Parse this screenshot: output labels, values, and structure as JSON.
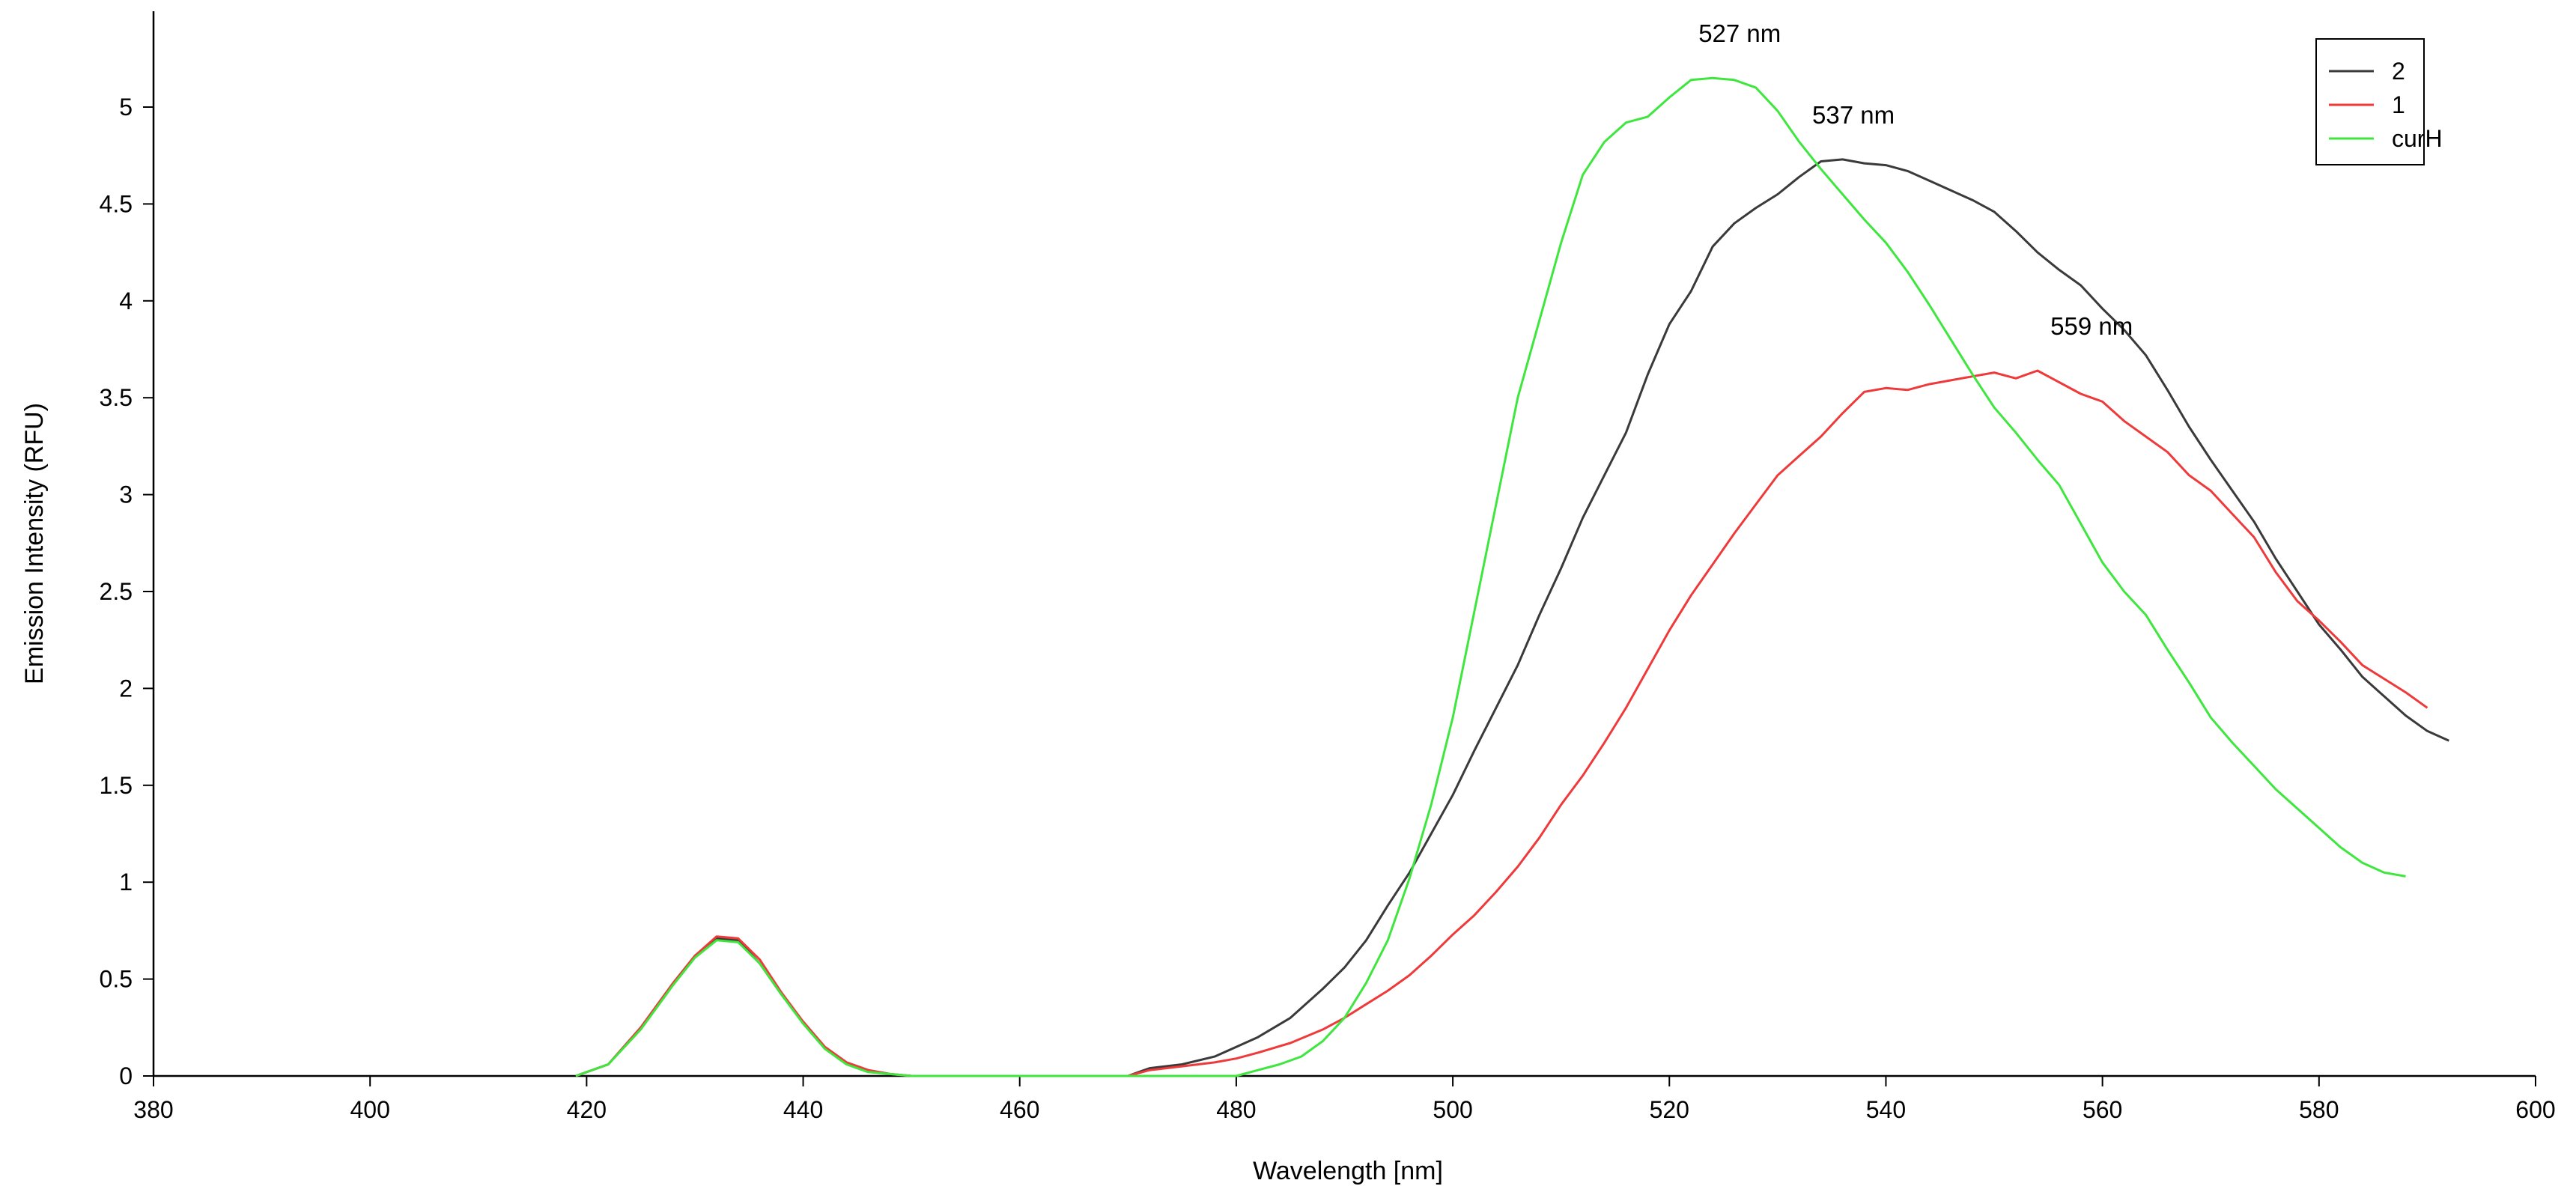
{
  "chart_data": {
    "type": "line",
    "xlabel": "Wavelength [nm]",
    "ylabel": "Emission Intensity (RFU)",
    "xlim": [
      380,
      600
    ],
    "ylim": [
      0,
      5.45
    ],
    "xticks": [
      380,
      400,
      420,
      440,
      460,
      480,
      500,
      520,
      540,
      560,
      580,
      600
    ],
    "xtick_labels": [
      "380",
      "400",
      "420",
      "440",
      "460",
      "480",
      "500",
      "520",
      "540",
      "560",
      "580",
      "600"
    ],
    "yticks": [
      0,
      0.5,
      1,
      1.5,
      2,
      2.5,
      3,
      3.5,
      4,
      4.5,
      5
    ],
    "ytick_labels": [
      "0",
      "0.5",
      "1",
      "1.5",
      "2",
      "2.5",
      "3",
      "3.5",
      "4",
      "4.5",
      "5"
    ],
    "grid": false,
    "legend_position": "top-right",
    "series": [
      {
        "name": "2",
        "color": "#3a3a3a",
        "points": [
          [
            419,
            0
          ],
          [
            422,
            0.06
          ],
          [
            425,
            0.25
          ],
          [
            428,
            0.48
          ],
          [
            430,
            0.62
          ],
          [
            432,
            0.71
          ],
          [
            434,
            0.7
          ],
          [
            436,
            0.58
          ],
          [
            438,
            0.42
          ],
          [
            440,
            0.28
          ],
          [
            442,
            0.15
          ],
          [
            444,
            0.07
          ],
          [
            446,
            0.03
          ],
          [
            448,
            0.01
          ],
          [
            450,
            0
          ],
          [
            470,
            0
          ],
          [
            472,
            0.04
          ],
          [
            475,
            0.06
          ],
          [
            478,
            0.1
          ],
          [
            480,
            0.15
          ],
          [
            482,
            0.2
          ],
          [
            485,
            0.3
          ],
          [
            488,
            0.45
          ],
          [
            490,
            0.56
          ],
          [
            492,
            0.7
          ],
          [
            494,
            0.88
          ],
          [
            496,
            1.05
          ],
          [
            498,
            1.25
          ],
          [
            500,
            1.45
          ],
          [
            502,
            1.68
          ],
          [
            504,
            1.9
          ],
          [
            506,
            2.12
          ],
          [
            508,
            2.38
          ],
          [
            510,
            2.62
          ],
          [
            512,
            2.88
          ],
          [
            514,
            3.1
          ],
          [
            516,
            3.32
          ],
          [
            518,
            3.62
          ],
          [
            520,
            3.88
          ],
          [
            522,
            4.05
          ],
          [
            524,
            4.28
          ],
          [
            526,
            4.4
          ],
          [
            528,
            4.48
          ],
          [
            530,
            4.55
          ],
          [
            532,
            4.64
          ],
          [
            534,
            4.72
          ],
          [
            536,
            4.73
          ],
          [
            538,
            4.71
          ],
          [
            540,
            4.7
          ],
          [
            542,
            4.67
          ],
          [
            544,
            4.62
          ],
          [
            546,
            4.57
          ],
          [
            548,
            4.52
          ],
          [
            550,
            4.46
          ],
          [
            552,
            4.36
          ],
          [
            554,
            4.25
          ],
          [
            556,
            4.16
          ],
          [
            558,
            4.08
          ],
          [
            560,
            3.96
          ],
          [
            562,
            3.85
          ],
          [
            564,
            3.72
          ],
          [
            566,
            3.54
          ],
          [
            568,
            3.35
          ],
          [
            570,
            3.18
          ],
          [
            572,
            3.02
          ],
          [
            574,
            2.86
          ],
          [
            576,
            2.67
          ],
          [
            578,
            2.5
          ],
          [
            580,
            2.33
          ],
          [
            582,
            2.2
          ],
          [
            584,
            2.06
          ],
          [
            586,
            1.96
          ],
          [
            588,
            1.86
          ],
          [
            590,
            1.78
          ],
          [
            592,
            1.73
          ]
        ]
      },
      {
        "name": "1",
        "color": "#ee3a3a",
        "points": [
          [
            419,
            0
          ],
          [
            422,
            0.06
          ],
          [
            425,
            0.25
          ],
          [
            428,
            0.48
          ],
          [
            430,
            0.62
          ],
          [
            432,
            0.72
          ],
          [
            434,
            0.71
          ],
          [
            436,
            0.6
          ],
          [
            438,
            0.43
          ],
          [
            440,
            0.28
          ],
          [
            442,
            0.15
          ],
          [
            444,
            0.07
          ],
          [
            446,
            0.03
          ],
          [
            448,
            0.01
          ],
          [
            450,
            0
          ],
          [
            470,
            0
          ],
          [
            472,
            0.03
          ],
          [
            475,
            0.05
          ],
          [
            478,
            0.07
          ],
          [
            480,
            0.09
          ],
          [
            482,
            0.12
          ],
          [
            485,
            0.17
          ],
          [
            488,
            0.24
          ],
          [
            490,
            0.3
          ],
          [
            492,
            0.37
          ],
          [
            494,
            0.44
          ],
          [
            496,
            0.52
          ],
          [
            498,
            0.62
          ],
          [
            500,
            0.73
          ],
          [
            502,
            0.83
          ],
          [
            504,
            0.95
          ],
          [
            506,
            1.08
          ],
          [
            508,
            1.23
          ],
          [
            510,
            1.4
          ],
          [
            512,
            1.55
          ],
          [
            514,
            1.72
          ],
          [
            516,
            1.9
          ],
          [
            518,
            2.1
          ],
          [
            520,
            2.3
          ],
          [
            522,
            2.48
          ],
          [
            524,
            2.64
          ],
          [
            526,
            2.8
          ],
          [
            528,
            2.95
          ],
          [
            530,
            3.1
          ],
          [
            532,
            3.2
          ],
          [
            534,
            3.3
          ],
          [
            536,
            3.42
          ],
          [
            538,
            3.53
          ],
          [
            540,
            3.55
          ],
          [
            542,
            3.54
          ],
          [
            544,
            3.57
          ],
          [
            546,
            3.59
          ],
          [
            548,
            3.61
          ],
          [
            550,
            3.63
          ],
          [
            552,
            3.6
          ],
          [
            554,
            3.64
          ],
          [
            556,
            3.58
          ],
          [
            558,
            3.52
          ],
          [
            560,
            3.48
          ],
          [
            562,
            3.38
          ],
          [
            564,
            3.3
          ],
          [
            566,
            3.22
          ],
          [
            568,
            3.1
          ],
          [
            570,
            3.02
          ],
          [
            572,
            2.9
          ],
          [
            574,
            2.78
          ],
          [
            576,
            2.6
          ],
          [
            578,
            2.45
          ],
          [
            580,
            2.35
          ],
          [
            582,
            2.24
          ],
          [
            584,
            2.12
          ],
          [
            586,
            2.05
          ],
          [
            588,
            1.98
          ],
          [
            590,
            1.9
          ]
        ]
      },
      {
        "name": "curH",
        "color": "#3ee63e",
        "points": [
          [
            419,
            0
          ],
          [
            422,
            0.06
          ],
          [
            425,
            0.24
          ],
          [
            428,
            0.47
          ],
          [
            430,
            0.61
          ],
          [
            432,
            0.7
          ],
          [
            434,
            0.69
          ],
          [
            436,
            0.58
          ],
          [
            438,
            0.42
          ],
          [
            440,
            0.27
          ],
          [
            442,
            0.14
          ],
          [
            444,
            0.06
          ],
          [
            446,
            0.02
          ],
          [
            448,
            0.01
          ],
          [
            450,
            0
          ],
          [
            480,
            0
          ],
          [
            482,
            0.03
          ],
          [
            484,
            0.06
          ],
          [
            486,
            0.1
          ],
          [
            488,
            0.18
          ],
          [
            490,
            0.3
          ],
          [
            492,
            0.48
          ],
          [
            494,
            0.7
          ],
          [
            496,
            1.02
          ],
          [
            498,
            1.4
          ],
          [
            500,
            1.85
          ],
          [
            502,
            2.4
          ],
          [
            504,
            2.95
          ],
          [
            506,
            3.5
          ],
          [
            508,
            3.9
          ],
          [
            510,
            4.3
          ],
          [
            512,
            4.65
          ],
          [
            514,
            4.82
          ],
          [
            516,
            4.92
          ],
          [
            518,
            4.95
          ],
          [
            520,
            5.05
          ],
          [
            522,
            5.14
          ],
          [
            524,
            5.15
          ],
          [
            526,
            5.14
          ],
          [
            528,
            5.1
          ],
          [
            530,
            4.98
          ],
          [
            532,
            4.82
          ],
          [
            534,
            4.68
          ],
          [
            536,
            4.55
          ],
          [
            538,
            4.42
          ],
          [
            540,
            4.3
          ],
          [
            542,
            4.15
          ],
          [
            544,
            3.98
          ],
          [
            546,
            3.8
          ],
          [
            548,
            3.62
          ],
          [
            550,
            3.45
          ],
          [
            552,
            3.32
          ],
          [
            554,
            3.18
          ],
          [
            556,
            3.05
          ],
          [
            558,
            2.85
          ],
          [
            560,
            2.65
          ],
          [
            562,
            2.5
          ],
          [
            564,
            2.38
          ],
          [
            566,
            2.2
          ],
          [
            568,
            2.03
          ],
          [
            570,
            1.85
          ],
          [
            572,
            1.72
          ],
          [
            574,
            1.6
          ],
          [
            576,
            1.48
          ],
          [
            578,
            1.38
          ],
          [
            580,
            1.28
          ],
          [
            582,
            1.18
          ],
          [
            584,
            1.1
          ],
          [
            586,
            1.05
          ],
          [
            588,
            1.03
          ]
        ]
      }
    ],
    "annotations": [
      {
        "text": "527 nm",
        "x": 526.5,
        "y": 5.15
      },
      {
        "text": "537 nm",
        "x": 537,
        "y": 4.73
      },
      {
        "text": "559 nm",
        "x": 559,
        "y": 3.64
      }
    ]
  }
}
